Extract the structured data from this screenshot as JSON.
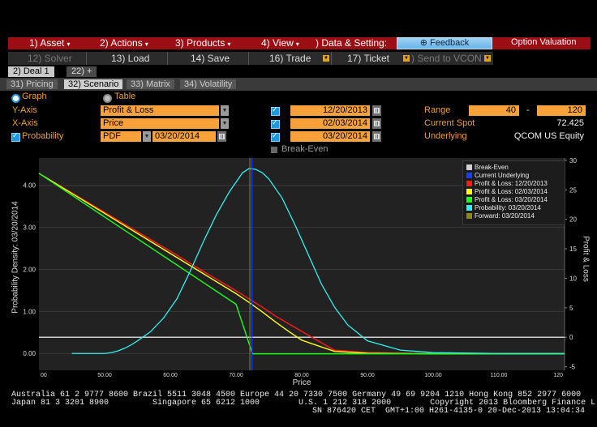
{
  "menu": {
    "items": [
      {
        "label": "1) Asset"
      },
      {
        "label": "2) Actions"
      },
      {
        "label": "3) Products"
      },
      {
        "label": "4) View"
      },
      {
        "label": ") Data & Setting:"
      }
    ],
    "feedback_label": "⊕ Feedback",
    "title": "Option Valuation"
  },
  "toolbar": {
    "items": [
      {
        "label": "12) Solver"
      },
      {
        "label": "13) Load"
      },
      {
        "label": "14) Save"
      },
      {
        "label": "16) Trade"
      },
      {
        "label": "17) Ticket"
      },
      {
        "label": ") Send to VCON"
      }
    ]
  },
  "deal_tabs": [
    "2) Deal 1",
    "22) +"
  ],
  "sub_tabs": [
    "31) Pricing",
    "32) Scenario",
    "33) Matrix",
    "34) Volatility"
  ],
  "view_mode": {
    "graph": "Graph",
    "table": "Table"
  },
  "settings": {
    "y_axis_label": "Y-Axis",
    "y_axis_value": "Profit & Loss",
    "x_axis_label": "X-Axis",
    "x_axis_value": "Price",
    "probability_label": "Probability",
    "probability_value": "PDF",
    "probability_date": "03/20/2014",
    "dates": [
      "12/20/2013",
      "02/03/2014",
      "03/20/2014"
    ],
    "break_even_label": "Break-Even",
    "range_label": "Range",
    "range_min": "40",
    "range_sep": "-",
    "range_max": "120",
    "current_spot_label": "Current Spot",
    "current_spot_value": "72.425",
    "underlying_label": "Underlying",
    "underlying_value": "QCOM US Equity"
  },
  "chart_data": {
    "type": "line",
    "xlabel": "Price",
    "ylabel_left": "Probability Density: 03/20/2014",
    "ylabel_right": "Profit & Loss",
    "x_ticks": [
      "00",
      "50.00",
      "60.00",
      "70.00",
      "80.00",
      "90.00",
      "100.00",
      "110.00",
      "120"
    ],
    "y_left_ticks": [
      "0.00",
      "1.00",
      "2.00",
      "3.00",
      "4.00"
    ],
    "y_right_ticks": [
      "-5",
      "0",
      "5",
      "10",
      "15",
      "20",
      "25",
      "30"
    ],
    "xlim": [
      40,
      120
    ],
    "y_left_lim": [
      -0.4,
      4.65
    ],
    "y_right_lim": [
      -5.6,
      30.4
    ],
    "current_underlying": 72.425,
    "forward": 72.1,
    "series": [
      {
        "name": "Break-Even",
        "color": "#cfcfcf",
        "x": [
          40,
          120
        ],
        "y": [
          0,
          0
        ]
      },
      {
        "name": "Profit & Loss: 12/20/2013",
        "color": "#ff1a1a",
        "x": [
          40,
          45,
          50,
          55,
          60,
          65,
          70,
          72,
          74,
          76,
          78,
          80,
          85,
          90,
          100,
          120
        ],
        "y": [
          27.8,
          24.5,
          21.2,
          17.9,
          14.6,
          11.2,
          7.9,
          6.5,
          5.1,
          3.6,
          2.3,
          1.0,
          -2.2,
          -2.6,
          -2.8,
          -2.8
        ]
      },
      {
        "name": "Profit & Loss: 02/03/2014",
        "color": "#ffff1a",
        "x": [
          40,
          45,
          50,
          55,
          60,
          65,
          70,
          72,
          74,
          76,
          78,
          80,
          85,
          90,
          100,
          120
        ],
        "y": [
          27.8,
          24.4,
          21.0,
          17.6,
          14.2,
          10.8,
          7.4,
          5.9,
          4.3,
          2.6,
          1.0,
          -0.5,
          -2.4,
          -2.7,
          -2.8,
          -2.8
        ]
      },
      {
        "name": "Profit & Loss: 03/20/2014",
        "color": "#1aff1a",
        "x": [
          40,
          45,
          50,
          55,
          60,
          65,
          70,
          72.5,
          80,
          90,
          100,
          120
        ],
        "y": [
          27.8,
          24.1,
          20.4,
          16.7,
          13.0,
          9.3,
          5.6,
          -2.8,
          -2.8,
          -2.8,
          -2.8,
          -2.8
        ]
      },
      {
        "name": "Probability: 03/20/2014",
        "color": "#2ff0f0",
        "x": [
          45,
          50,
          51,
          52,
          53,
          54,
          55,
          57,
          59,
          61,
          63,
          65,
          67,
          69,
          71,
          72,
          73,
          74,
          75,
          77,
          79,
          81,
          83,
          85,
          87,
          90,
          95,
          100,
          110,
          120
        ],
        "y": [
          0.0,
          0.0,
          0.02,
          0.06,
          0.12,
          0.2,
          0.3,
          0.52,
          0.85,
          1.3,
          1.95,
          2.65,
          3.3,
          3.85,
          4.3,
          4.4,
          4.38,
          4.3,
          4.15,
          3.7,
          3.05,
          2.35,
          1.65,
          1.1,
          0.68,
          0.3,
          0.08,
          0.02,
          0.0,
          0.0
        ]
      },
      {
        "name": "Current Underlying",
        "color": "#1a3cff"
      },
      {
        "name": "Forward: 03/20/2014",
        "color": "#8a8a10"
      }
    ]
  },
  "footer": {
    "line1": "Australia 61 2 9777 8600 Brazil 5511 3048 4500 Europe 44 20 7330 7500 Germany 49 69 9204 1210 Hong Kong 852 2977 6000",
    "line2": "Japan 81 3 3201 8900         Singapore 65 6212 1000        U.S. 1 212 318 2000        Copyright 2013 Bloomberg Finance L.P.",
    "line3": "SN 876420 CET  GMT+1:00 H261-4135-0 20-Dec-2013 13:04:34"
  }
}
